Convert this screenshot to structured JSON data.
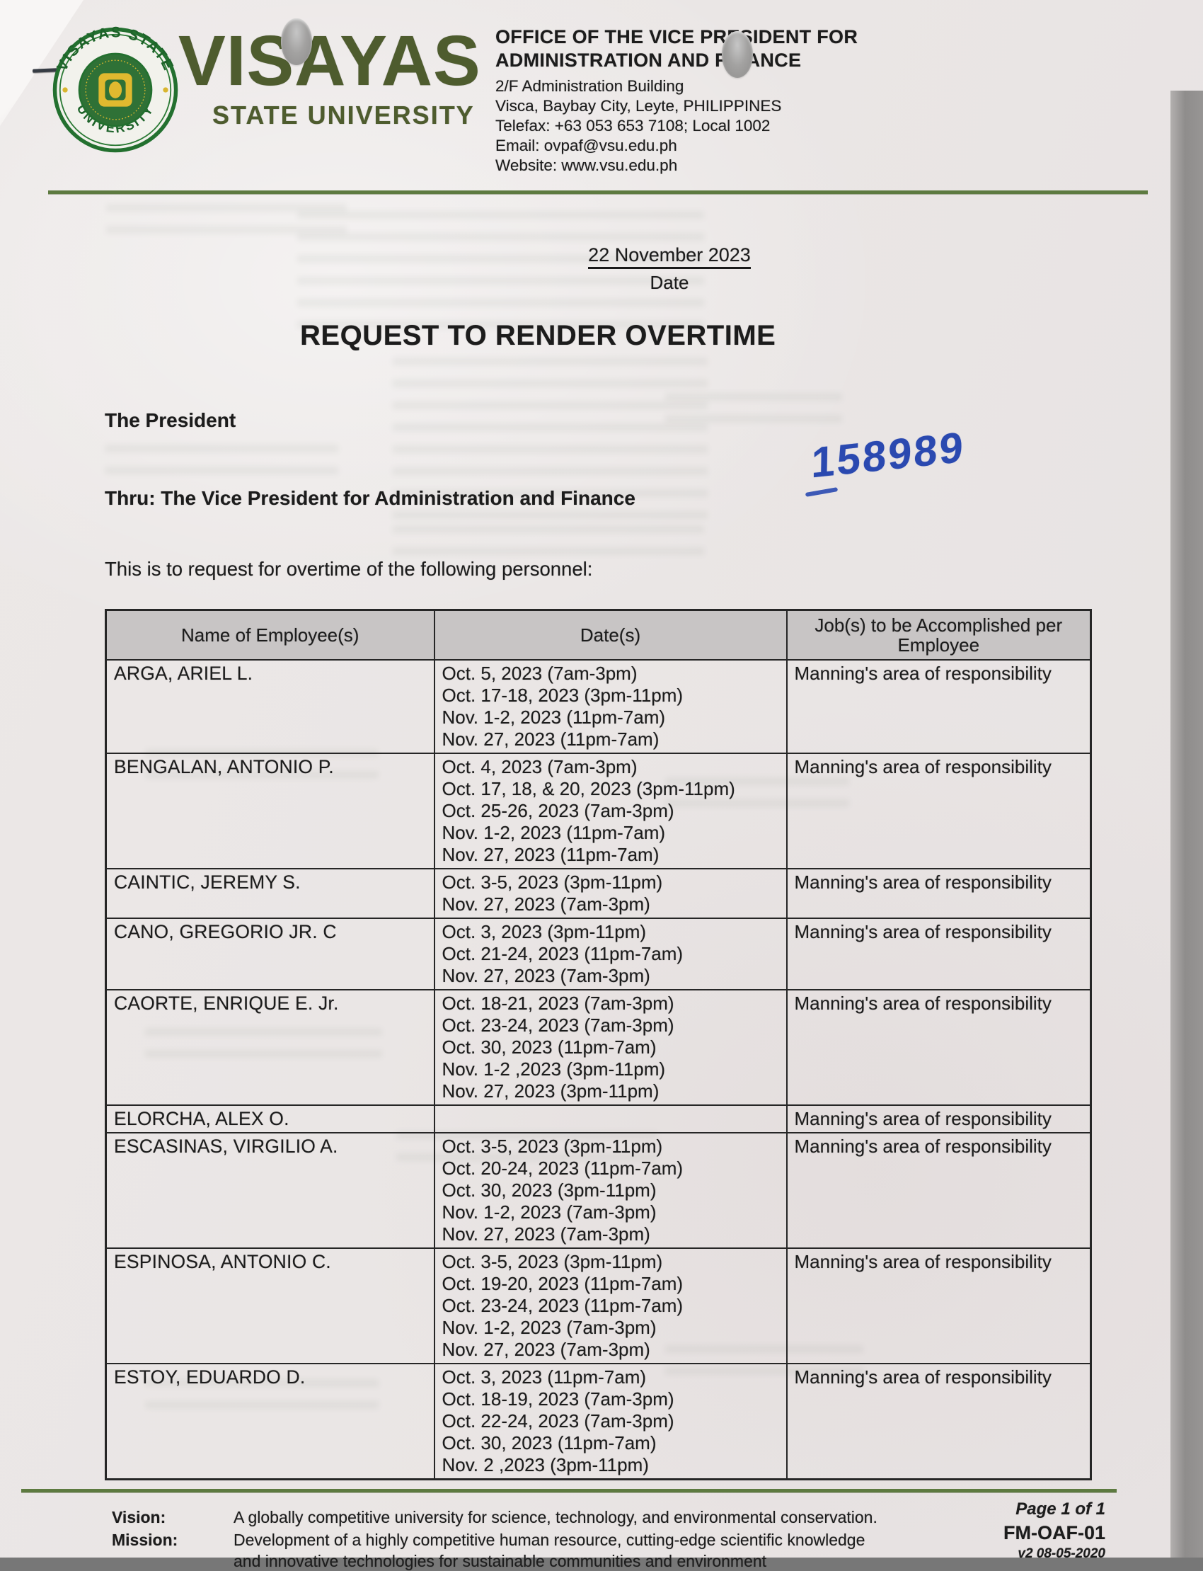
{
  "header": {
    "logo": {
      "wordmark": "VISAYAS",
      "tagline": "STATE UNIVERSITY",
      "seal_top": "VISAYAS STATE",
      "seal_bottom": "UNIVERSITY"
    },
    "office": {
      "line1": "OFFICE OF THE VICE PRESIDENT FOR",
      "line2": "ADMINISTRATION AND FINANCE",
      "address1": "2/F Administration Building",
      "address2": "Visca, Baybay City, Leyte, PHILIPPINES",
      "telefax": "Telefax: +63 053 653 7108; Local 1002",
      "email": "Email: ovpaf@vsu.edu.ph",
      "website": "Website: www.vsu.edu.ph"
    }
  },
  "date_block": {
    "date": "22 November 2023",
    "label": "Date"
  },
  "title": "REQUEST TO RENDER OVERTIME",
  "body": {
    "addressee": "The President",
    "thru": "Thru: The Vice President for Administration and Finance",
    "intro": "This is to request for overtime of the following personnel:",
    "handwritten_number": "158989"
  },
  "table": {
    "headers": [
      "Name of Employee(s)",
      "Date(s)",
      "Job(s) to be Accomplished per Employee"
    ],
    "rows": [
      {
        "name": "ARGA, ARIEL L.",
        "dates": [
          "Oct. 5, 2023 (7am-3pm)",
          "Oct. 17-18, 2023 (3pm-11pm)",
          "Nov. 1-2, 2023 (11pm-7am)",
          "Nov. 27, 2023 (11pm-7am)"
        ],
        "job": "Manning's area of responsibility"
      },
      {
        "name": "BENGALAN, ANTONIO P.",
        "dates": [
          "Oct. 4, 2023 (7am-3pm)",
          "Oct. 17, 18, & 20, 2023 (3pm-11pm)",
          "Oct. 25-26, 2023 (7am-3pm)",
          "Nov. 1-2, 2023 (11pm-7am)",
          "Nov. 27, 2023 (11pm-7am)"
        ],
        "job": "Manning's area of responsibility"
      },
      {
        "name": "CAINTIC, JEREMY S.",
        "dates": [
          "Oct. 3-5, 2023 (3pm-11pm)",
          "Nov. 27, 2023 (7am-3pm)"
        ],
        "job": "Manning's area of responsibility"
      },
      {
        "name": "CANO, GREGORIO JR. C",
        "dates": [
          "Oct. 3, 2023 (3pm-11pm)",
          "Oct. 21-24, 2023 (11pm-7am)",
          "Nov. 27, 2023 (7am-3pm)"
        ],
        "job": "Manning's area of responsibility"
      },
      {
        "name": "CAORTE, ENRIQUE E. Jr.",
        "dates": [
          "Oct. 18-21, 2023 (7am-3pm)",
          "Oct. 23-24, 2023 (7am-3pm)",
          "Oct. 30, 2023 (11pm-7am)",
          "Nov. 1-2 ,2023 (3pm-11pm)",
          "Nov. 27, 2023 (3pm-11pm)"
        ],
        "job": "Manning's area of responsibility"
      },
      {
        "name": "ELORCHA, ALEX O.",
        "dates": [],
        "job": "Manning's area of responsibility"
      },
      {
        "name": "ESCASINAS, VIRGILIO A.",
        "dates": [
          "Oct. 3-5, 2023 (3pm-11pm)",
          "Oct. 20-24, 2023 (11pm-7am)",
          "Oct. 30, 2023 (3pm-11pm)",
          "Nov. 1-2, 2023 (7am-3pm)",
          "Nov. 27, 2023 (7am-3pm)"
        ],
        "job": "Manning's area of responsibility"
      },
      {
        "name": "ESPINOSA, ANTONIO C.",
        "dates": [
          "Oct. 3-5, 2023 (3pm-11pm)",
          "Oct. 19-20, 2023 (11pm-7am)",
          "Oct. 23-24, 2023 (11pm-7am)",
          "Nov. 1-2, 2023 (7am-3pm)",
          "Nov. 27, 2023 (7am-3pm)"
        ],
        "job": "Manning's area of responsibility"
      },
      {
        "name": "ESTOY, EDUARDO D.",
        "dates": [
          "Oct. 3, 2023 (11pm-7am)",
          "Oct. 18-19, 2023 (7am-3pm)",
          "Oct. 22-24, 2023 (7am-3pm)",
          "Oct. 30, 2023 (11pm-7am)",
          "Nov. 2 ,2023 (3pm-11pm)"
        ],
        "job": "Manning's area of responsibility"
      }
    ]
  },
  "footer": {
    "vision_label": "Vision:",
    "vision": "A globally competitive university for science, technology, and environmental conservation.",
    "mission_label": "Mission:",
    "mission_line1": "Development of a highly competitive human resource, cutting-edge scientific knowledge",
    "mission_line2": "and innovative technologies for sustainable communities and environment",
    "page_number": "Page 1 of 1",
    "form_code": "FM-OAF-01",
    "version": "v2 08-05-2020"
  },
  "colors": {
    "rule_green": "#5d7a40",
    "logo_green": "#4e5c2e",
    "seal_green": "#23702f",
    "seal_gold": "#e0b92f",
    "table_header_bg": "#c8c5c5",
    "handwriting_blue": "#2a49b0",
    "paper": "#eae6e5"
  }
}
